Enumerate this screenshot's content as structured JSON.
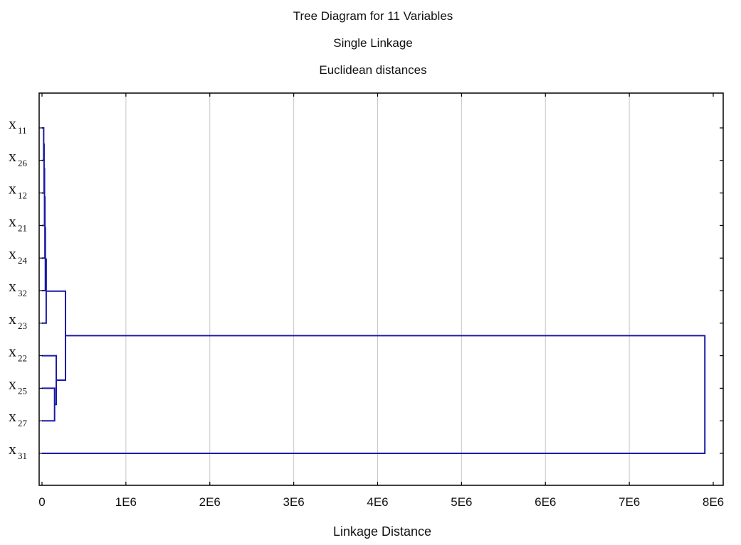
{
  "chart_data": {
    "type": "dendrogram",
    "title": "Tree Diagram for 11  Variables",
    "subtitle_lines": [
      "Single Linkage",
      "Euclidean distances"
    ],
    "xlabel": "Linkage Distance",
    "xlim": [
      0,
      8000000
    ],
    "xticks": [
      0,
      1000000,
      2000000,
      3000000,
      4000000,
      5000000,
      6000000,
      7000000,
      8000000
    ],
    "xtick_labels": [
      "0",
      "1E6",
      "2E6",
      "3E6",
      "4E6",
      "5E6",
      "6E6",
      "7E6",
      "8E6"
    ],
    "grid": true,
    "line_color": "#1a1aa6",
    "leaves": [
      {
        "base": "x",
        "sub": "11"
      },
      {
        "base": "x",
        "sub": "26"
      },
      {
        "base": "x",
        "sub": "12"
      },
      {
        "base": "x",
        "sub": "21"
      },
      {
        "base": "x",
        "sub": "24"
      },
      {
        "base": "x",
        "sub": "32"
      },
      {
        "base": "x",
        "sub": "23"
      },
      {
        "base": "x",
        "sub": "22"
      },
      {
        "base": "x",
        "sub": "25"
      },
      {
        "base": "x",
        "sub": "27"
      },
      {
        "base": "x",
        "sub": "31"
      }
    ],
    "merges": [
      {
        "a": 0,
        "b": 1,
        "height": 20000
      },
      {
        "a": 11,
        "b": 2,
        "height": 25000
      },
      {
        "a": 12,
        "b": 3,
        "height": 30000
      },
      {
        "a": 13,
        "b": 4,
        "height": 35000
      },
      {
        "a": 14,
        "b": 5,
        "height": 40000
      },
      {
        "a": 15,
        "b": 6,
        "height": 50000
      },
      {
        "a": 8,
        "b": 9,
        "height": 150000
      },
      {
        "a": 7,
        "b": 17,
        "height": 170000
      },
      {
        "a": 16,
        "b": 18,
        "height": 280000
      },
      {
        "a": 19,
        "b": 10,
        "height": 7900000
      }
    ]
  }
}
